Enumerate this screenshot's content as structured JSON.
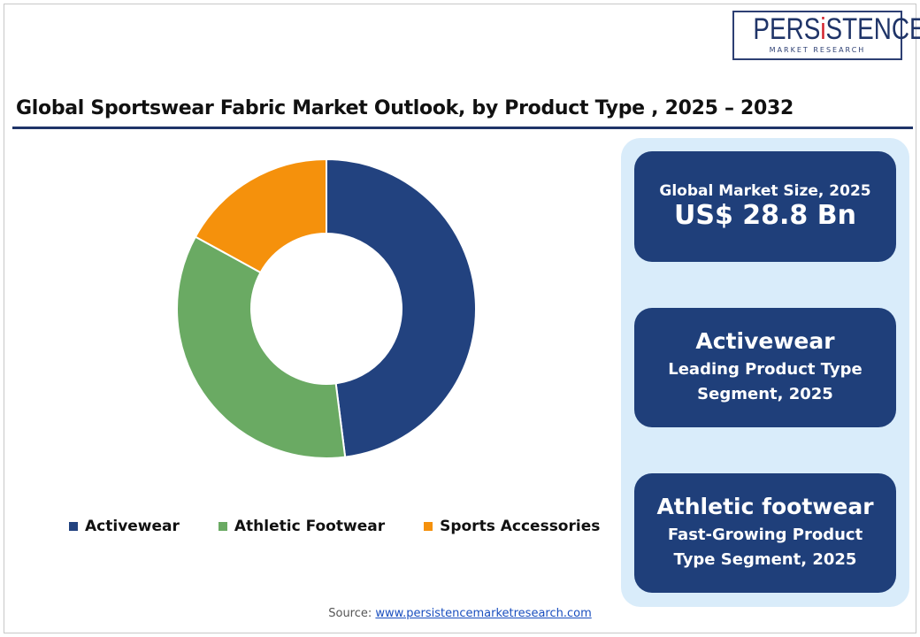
{
  "logo": {
    "brand": "PERSiSTENCE",
    "tagline": "MARKET RESEARCH"
  },
  "chart_data": {
    "type": "pie",
    "title": "Global Sportswear Fabric Market Outlook, by Product Type , 2025 – 2032",
    "donut": true,
    "categories": [
      "Activewear",
      "Athletic Footwear",
      "Sports Accessories"
    ],
    "values": [
      48,
      35,
      17
    ],
    "colors": [
      "#22427f",
      "#6aaa63",
      "#f5910c"
    ],
    "legend_position": "bottom"
  },
  "cards": [
    {
      "line1": "Global Market Size, 2025",
      "line2": "US$ 28.8 Bn"
    },
    {
      "heading": "Activewear",
      "sub1": "Leading Product Type",
      "sub2": "Segment, 2025"
    },
    {
      "heading": "Athletic footwear",
      "sub1": "Fast-Growing Product",
      "sub2": "Type  Segment, 2025"
    }
  ],
  "source": {
    "label": "Source:",
    "link": "www.persistencemarketresearch.com"
  }
}
